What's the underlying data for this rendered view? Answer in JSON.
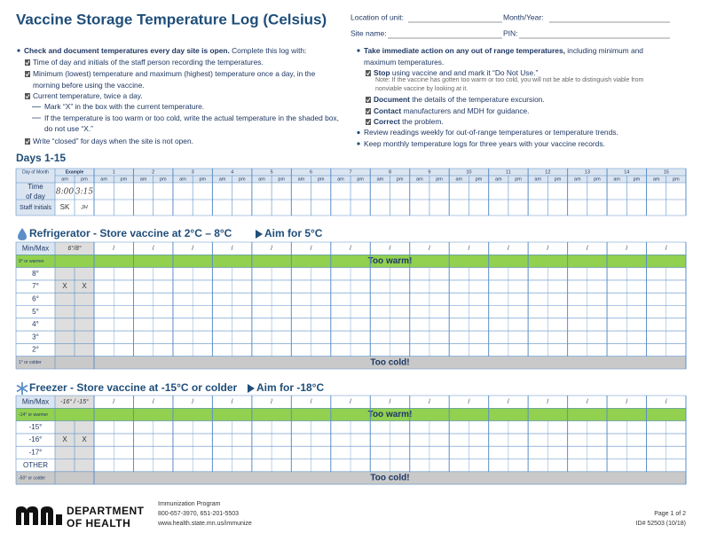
{
  "header": {
    "title": "Vaccine Storage Temperature Log (Celsius)",
    "location_label": "Location of unit:",
    "month_year_label": "Month/Year:",
    "site_label": "Site name:",
    "pin_label": "PIN:"
  },
  "instructions_left": {
    "lead_bold": "Check and document temperatures every day site is open.",
    "lead_rest": " Complete this log with:",
    "items": [
      {
        "text": "Time of day and initials of the staff person recording the temperatures."
      },
      {
        "text": "Minimum (lowest) temperature and maximum (highest) temperature once a day, in the morning before using the vaccine."
      },
      {
        "text": "Current temperature, twice a day.",
        "subitems": [
          "Mark “X” in the box with the current temperature.",
          "If the temperature is too warm or too cold, write the actual temperature in the shaded box, do not use “X.”"
        ]
      },
      {
        "text": "Write “closed” for days when the site is not open."
      }
    ]
  },
  "instructions_right": {
    "lead_bold": "Take immediate action on any out of range temperatures,",
    "lead_rest": " including minimum and maximum temperatures.",
    "steps": [
      {
        "bold": "Stop",
        "text": " using vaccine and and mark it “Do Not Use.”",
        "note": "Note: If the vaccine has gotten too warm or too cold, you will not be able to distinguish viable from nonviable vaccine by looking at it."
      },
      {
        "bold": "Document",
        "text": " the details of the temperature excursion."
      },
      {
        "bold": "Contact",
        "text": " manufacturers and MDH for guidance."
      },
      {
        "bold": "Correct",
        "text": " the problem."
      }
    ],
    "bullets": [
      "Review readings weekly for out-of-range temperatures or temperature trends.",
      "Keep monthly temperature logs for three years with your vaccine records."
    ]
  },
  "days_table": {
    "title": "Days 1-15",
    "day_of_month_label": "Day of Month",
    "example_label": "Example",
    "days": [
      "1",
      "2",
      "3",
      "4",
      "5",
      "6",
      "7",
      "8",
      "9",
      "10",
      "11",
      "12",
      "13",
      "14",
      "15"
    ],
    "am": "am",
    "pm": "pm",
    "time_label": "Time of day",
    "initials_label": "Staff Initials",
    "example_time": [
      "8:00",
      "3:15"
    ],
    "example_initials": [
      "SK",
      "JH"
    ]
  },
  "refrigerator": {
    "title": "Refrigerator - Store vaccine at 2°C – 8°C",
    "aim": "Aim for 5°C",
    "minmax_label": "Min/Max",
    "example_minmax": "6°/8°",
    "separator": "/",
    "rows": [
      {
        "label": "9° or warmer",
        "banner": "Too warm!"
      },
      {
        "label": "8°"
      },
      {
        "label": "7°",
        "example": [
          "X",
          "X"
        ]
      },
      {
        "label": "6°"
      },
      {
        "label": "5°"
      },
      {
        "label": "4°"
      },
      {
        "label": "3°"
      },
      {
        "label": "2°"
      },
      {
        "label": "1° or colder",
        "banner": "Too cold!"
      }
    ]
  },
  "freezer": {
    "title": "Freezer - Store vaccine at -15°C or colder",
    "aim": "Aim for -18°C",
    "minmax_label": "Min/Max",
    "example_minmax": "-16° / -15°",
    "separator": "/",
    "rows": [
      {
        "label": "-14° or warmer",
        "banner": "Too warm!"
      },
      {
        "label": "-15°"
      },
      {
        "label": "-16°",
        "example": [
          "X",
          "X"
        ]
      },
      {
        "label": "-17°"
      },
      {
        "label": "OTHER"
      },
      {
        "label": "-50° or colder",
        "banner": "Too cold!"
      }
    ]
  },
  "footer": {
    "department": "DEPARTMENT",
    "of_health": "OF HEALTH",
    "program": "Immunization Program",
    "phones": "800-657-3970, 651-201-5503",
    "url": "www.health.state.mn.us/immunize",
    "page": "Page 1 of 2",
    "id": "ID# 52503 (10/18)"
  }
}
